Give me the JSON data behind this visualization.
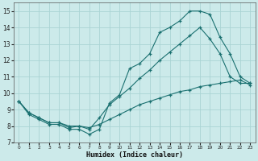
{
  "xlabel": "Humidex (Indice chaleur)",
  "xlim": [
    -0.5,
    23.5
  ],
  "ylim": [
    7,
    15.5
  ],
  "yticks": [
    7,
    8,
    9,
    10,
    11,
    12,
    13,
    14,
    15
  ],
  "xticks": [
    0,
    1,
    2,
    3,
    4,
    5,
    6,
    7,
    8,
    9,
    10,
    11,
    12,
    13,
    14,
    15,
    16,
    17,
    18,
    19,
    20,
    21,
    22,
    23
  ],
  "bg_color": "#cceaea",
  "grid_color": "#aad4d4",
  "line_color": "#1a7070",
  "line1_y": [
    9.5,
    8.7,
    8.4,
    8.1,
    8.1,
    7.8,
    7.8,
    7.5,
    7.8,
    9.4,
    9.9,
    11.5,
    11.8,
    12.4,
    13.7,
    14.0,
    14.4,
    15.0,
    15.0,
    14.8,
    13.4,
    12.4,
    11.0,
    10.6
  ],
  "line2_y": [
    9.5,
    8.8,
    8.5,
    8.2,
    8.2,
    7.9,
    8.0,
    7.8,
    8.5,
    9.3,
    9.8,
    10.3,
    10.9,
    11.4,
    12.0,
    12.5,
    13.0,
    13.5,
    14.0,
    13.3,
    12.4,
    11.0,
    10.6,
    10.6
  ],
  "line3_y": [
    9.5,
    8.8,
    8.5,
    8.2,
    8.2,
    8.0,
    8.0,
    7.9,
    8.1,
    8.4,
    8.7,
    9.0,
    9.3,
    9.5,
    9.7,
    9.9,
    10.1,
    10.2,
    10.4,
    10.5,
    10.6,
    10.7,
    10.8,
    10.5
  ]
}
